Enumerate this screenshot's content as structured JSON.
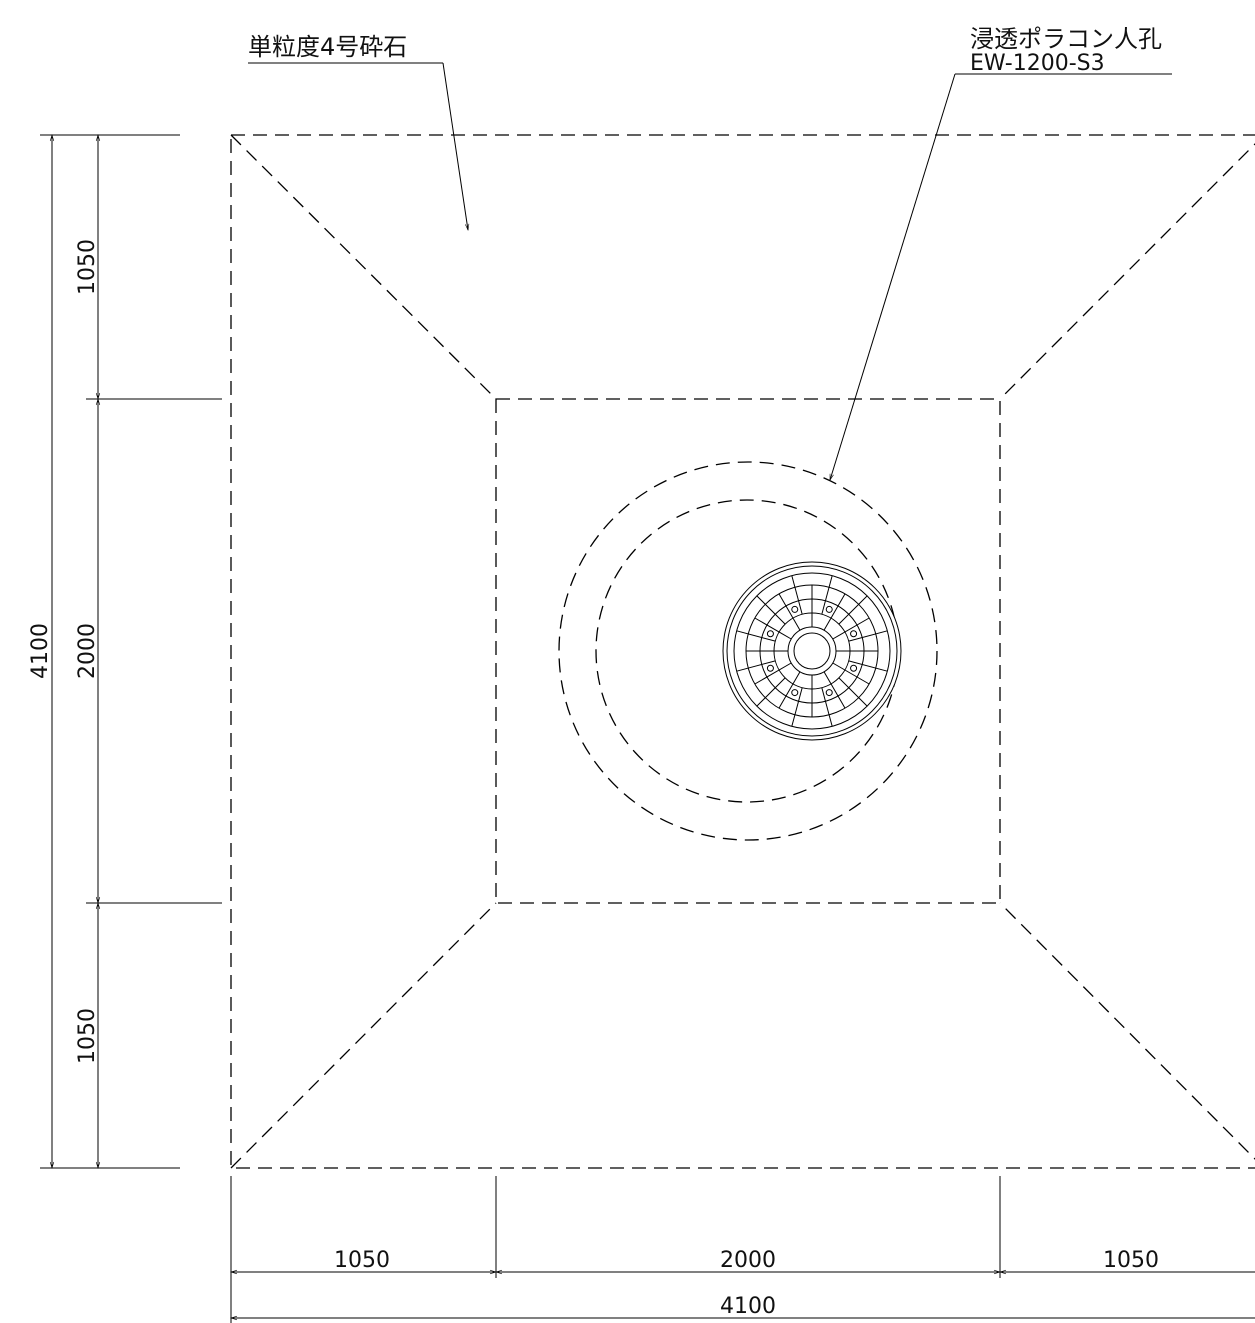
{
  "labels": {
    "gravel": "単粒度4号砕石",
    "manhole_name": "浸透ポラコン人孔",
    "manhole_model": "EW-1200-S3"
  },
  "vertical_dimensions": {
    "segments": [
      1050,
      2000,
      1050
    ],
    "total": 4100
  },
  "horizontal_dimensions": {
    "segments": [
      1050,
      2000,
      1050
    ],
    "total": 4100
  }
}
